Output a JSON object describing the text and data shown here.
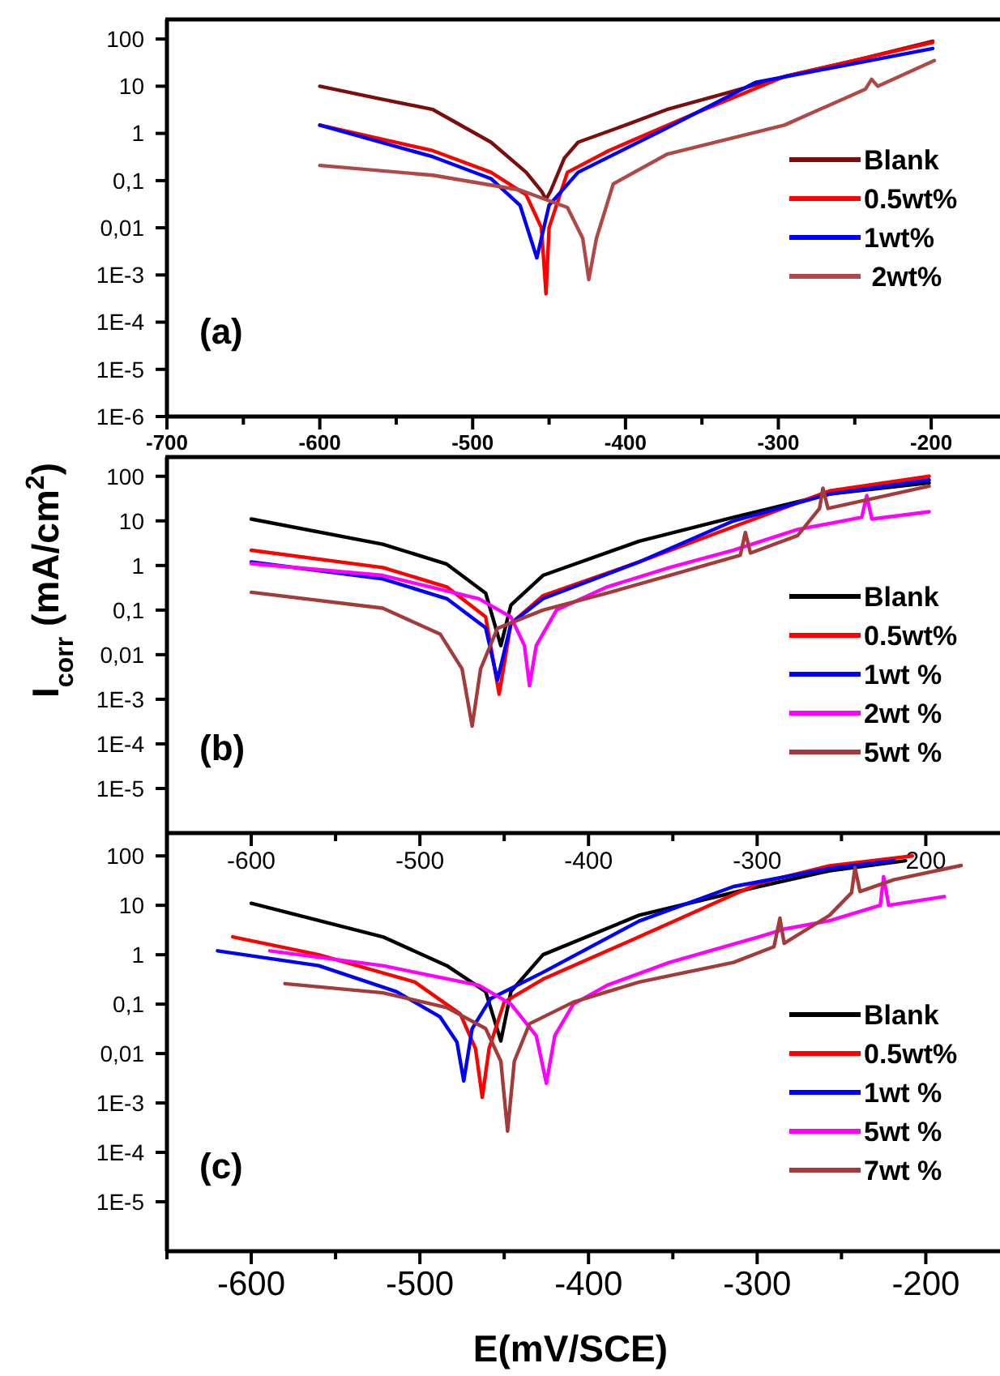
{
  "chart_data": [
    {
      "type": "line",
      "log": "y",
      "legend": "right",
      "xlim": [
        -700,
        -155
      ],
      "ylim": [
        1e-06,
        260
      ],
      "xticks": [
        -700,
        {
          "value": -650,
          "label": null
        },
        -600,
        {
          "value": -550,
          "label": null
        },
        -500,
        {
          "value": -450,
          "label": null
        },
        -400,
        {
          "value": -350,
          "label": null
        },
        -300,
        {
          "value": -250,
          "label": null
        },
        -200
      ],
      "yticks": [
        {
          "value": 1e-06,
          "label": "1E-6"
        },
        {
          "value": 1e-05,
          "label": "1E-5"
        },
        {
          "value": 0.0001,
          "label": "1E-4"
        },
        {
          "value": 0.001,
          "label": "1E-3"
        },
        {
          "value": 0.01,
          "label": "0,01"
        },
        {
          "value": 0.1,
          "label": "0,1"
        },
        1,
        10,
        100
      ],
      "annotations": [
        "(a)"
      ],
      "series": [
        {
          "name": "Blank",
          "color": "#7b0d0d",
          "x": [
            -600,
            -564,
            -526,
            -488,
            -465,
            -455,
            -452,
            -449,
            -440,
            -431,
            -400,
            -373,
            -335,
            -296,
            -250,
            -199
          ],
          "values": [
            10,
            5.7,
            3.2,
            0.65,
            0.15,
            0.06,
            0.04,
            0.06,
            0.3,
            0.65,
            1.5,
            3.2,
            7,
            16,
            35,
            90
          ]
        },
        {
          "name": "0.5wt%",
          "color": "#ff0000",
          "x": [
            -600,
            -526,
            -488,
            -465,
            -455,
            -452,
            -450,
            -438,
            -411,
            -354,
            -296,
            -199
          ],
          "values": [
            1.5,
            0.43,
            0.15,
            0.05,
            0.01,
            0.0004,
            0.01,
            0.15,
            0.43,
            2.7,
            16,
            85
          ]
        },
        {
          "name": "1wt%",
          "color": "#0000ff",
          "x": [
            -600,
            -526,
            -488,
            -469,
            -458,
            -450,
            -431,
            -373,
            -315,
            -199
          ],
          "values": [
            1.5,
            0.32,
            0.11,
            0.03,
            0.0023,
            0.03,
            0.15,
            1.3,
            12,
            63
          ]
        },
        {
          "name": " 2wt%",
          "color": "#b04848",
          "x": [
            -600,
            -526,
            -469,
            -438,
            -428,
            -424,
            -419,
            -408,
            -373,
            -296,
            -243,
            -239,
            -235,
            -198
          ],
          "values": [
            0.21,
            0.13,
            0.063,
            0.027,
            0.006,
            0.0008,
            0.006,
            0.085,
            0.36,
            1.5,
            8.7,
            14,
            10,
            35
          ]
        }
      ]
    },
    {
      "type": "line",
      "log": "y",
      "legend": "bottom right",
      "xlim": [
        -650,
        -156
      ],
      "ylim": [
        1e-06,
        270
      ],
      "xticks": [
        -600,
        {
          "value": -550,
          "label": null
        },
        -500,
        {
          "value": -450,
          "label": null
        },
        -400,
        {
          "value": -350,
          "label": null
        },
        -300,
        {
          "value": -250,
          "label": null
        },
        {
          "value": -200,
          "label": "200"
        }
      ],
      "yticks": [
        {
          "value": 1e-05,
          "label": "1E-5"
        },
        {
          "value": 0.0001,
          "label": "1E-4"
        },
        {
          "value": 0.001,
          "label": "1E-3"
        },
        {
          "value": 0.01,
          "label": "0,01"
        },
        {
          "value": 0.1,
          "label": "0,1"
        },
        1,
        10,
        100
      ],
      "ylabel": "I$_{corr}$ (mA/cm$^{2}$)",
      "annotations": [
        "(b)"
      ],
      "series": [
        {
          "name": "Blank",
          "color": "#000000",
          "x": [
            -600,
            -522,
            -484,
            -461,
            -452,
            -446,
            -427,
            -370,
            -314,
            -257,
            -198
          ],
          "values": [
            11,
            3,
            1.07,
            0.24,
            0.016,
            0.13,
            0.6,
            3.5,
            12,
            40,
            71
          ]
        },
        {
          "name": "0.5wt%",
          "color": "#ff0000",
          "x": [
            -600,
            -522,
            -484,
            -461,
            -453,
            -446,
            -427,
            -370,
            -314,
            -257,
            -198
          ],
          "values": [
            2.2,
            0.9,
            0.33,
            0.07,
            0.0013,
            0.05,
            0.21,
            1.2,
            7.4,
            47,
            100
          ]
        },
        {
          "name": "1wt %",
          "color": "#0000ff",
          "x": [
            -600,
            -522,
            -484,
            -461,
            -454,
            -446,
            -427,
            -370,
            -314,
            -257,
            -198
          ],
          "values": [
            1.2,
            0.5,
            0.18,
            0.04,
            0.0027,
            0.05,
            0.18,
            1.2,
            10,
            40,
            83
          ]
        },
        {
          "name": "2wt %",
          "color": "#ff00ff",
          "x": [
            -600,
            -522,
            -465,
            -446,
            -438,
            -435,
            -431,
            -419,
            -389,
            -352,
            -314,
            -276,
            -238,
            -235,
            -232,
            -198
          ],
          "values": [
            1.1,
            0.6,
            0.18,
            0.07,
            0.016,
            0.002,
            0.016,
            0.1,
            0.33,
            0.9,
            2.2,
            6.4,
            12,
            37,
            11,
            16
          ]
        },
        {
          "name": "5wt %",
          "color": "#a33b3b",
          "x": [
            -600,
            -522,
            -488,
            -475,
            -469,
            -464,
            -454,
            -427,
            -389,
            -352,
            -310,
            -307,
            -304,
            -276,
            -263,
            -261,
            -258,
            -198
          ],
          "values": [
            0.25,
            0.11,
            0.029,
            0.0048,
            0.00025,
            0.0048,
            0.039,
            0.1,
            0.24,
            0.6,
            1.7,
            5.5,
            1.9,
            4.7,
            19,
            54,
            19,
            60
          ]
        }
      ]
    },
    {
      "type": "line",
      "log": "y",
      "legend": "bottom right",
      "xlim": [
        -650,
        -156
      ],
      "ylim": [
        1e-06,
        290
      ],
      "xticks": [
        {
          "value": -650,
          "label": null
        },
        -600,
        {
          "value": -550,
          "label": null
        },
        -500,
        {
          "value": -450,
          "label": null
        },
        -400,
        {
          "value": -350,
          "label": null
        },
        -300,
        {
          "value": -250,
          "label": null
        },
        -200
      ],
      "yticks": [
        {
          "value": 1e-05,
          "label": "1E-5"
        },
        {
          "value": 0.0001,
          "label": "1E-4"
        },
        {
          "value": 0.001,
          "label": "1E-3"
        },
        {
          "value": 0.01,
          "label": "0,01"
        },
        {
          "value": 0.1,
          "label": "0,1"
        },
        1,
        10,
        100
      ],
      "xlabel": "E(mV/SCE)",
      "annotations": [
        "(c)"
      ],
      "series": [
        {
          "name": "Blank",
          "color": "#000000",
          "x": [
            -600,
            -522,
            -484,
            -461,
            -452,
            -446,
            -427,
            -370,
            -299,
            -257,
            -212
          ],
          "values": [
            11,
            2.3,
            0.6,
            0.18,
            0.018,
            0.18,
            1,
            6.3,
            24,
            50,
            80
          ]
        },
        {
          "name": "0.5wt%",
          "color": "#ff0000",
          "x": [
            -611,
            -560,
            -503,
            -476,
            -467,
            -463,
            -459,
            -450,
            -427,
            -370,
            -299,
            -257,
            -208
          ],
          "values": [
            2.3,
            1,
            0.28,
            0.063,
            0.0125,
            0.0013,
            0.0125,
            0.11,
            0.32,
            2.3,
            28,
            63,
            100
          ]
        },
        {
          "name": "1wt %",
          "color": "#0000ff",
          "x": [
            -620,
            -560,
            -514,
            -488,
            -478,
            -474,
            -469,
            -458,
            -427,
            -370,
            -314,
            -257,
            -219
          ],
          "values": [
            1.2,
            0.6,
            0.18,
            0.055,
            0.017,
            0.0028,
            0.032,
            0.13,
            0.44,
            4.8,
            24,
            56,
            80
          ]
        },
        {
          "name": "5wt %",
          "color": "#ff00ff",
          "x": [
            -589,
            -522,
            -465,
            -446,
            -431,
            -425,
            -420,
            -409,
            -389,
            -352,
            -299,
            -284,
            -257,
            -227,
            -225,
            -222,
            -189
          ],
          "values": [
            1.2,
            0.6,
            0.24,
            0.1,
            0.023,
            0.0025,
            0.023,
            0.1,
            0.24,
            0.7,
            2.3,
            3.3,
            4.9,
            10,
            38,
            10,
            15
          ]
        },
        {
          "name": "7wt %",
          "color": "#a33b3b",
          "x": [
            -580,
            -522,
            -484,
            -461,
            -452,
            -448,
            -444,
            -435,
            -409,
            -370,
            -314,
            -290,
            -286.5,
            -284,
            -257,
            -244,
            -242,
            -239,
            -219,
            -179
          ],
          "values": [
            0.26,
            0.17,
            0.085,
            0.032,
            0.007,
            0.00027,
            0.007,
            0.04,
            0.11,
            0.28,
            0.7,
            1.45,
            5.5,
            1.7,
            6.3,
            18,
            58,
            19,
            33,
            64
          ]
        }
      ]
    }
  ]
}
